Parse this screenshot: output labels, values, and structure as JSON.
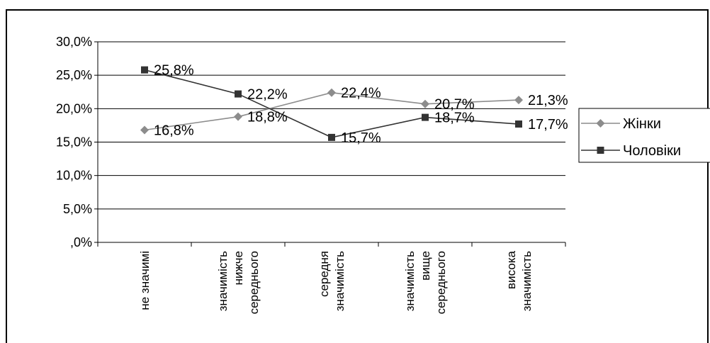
{
  "chart_data": {
    "type": "line",
    "categories": [
      [
        "не значимі"
      ],
      [
        "значимість",
        "нижче",
        "середнього"
      ],
      [
        "середня",
        "значимість"
      ],
      [
        "значимість",
        "вище",
        "середнього"
      ],
      [
        "висока",
        "значимість"
      ]
    ],
    "series": [
      {
        "name": "Жінки",
        "values": [
          16.8,
          18.8,
          22.4,
          20.7,
          21.3
        ],
        "labels": [
          "16,8%",
          "18,8%",
          "22,4%",
          "20,7%",
          "21,3%"
        ],
        "color": "#8c8c8c",
        "marker": "diamond"
      },
      {
        "name": "Чоловіки",
        "values": [
          25.8,
          22.2,
          15.7,
          18.7,
          17.7
        ],
        "labels": [
          "25,8%",
          "22,2%",
          "15,7%",
          "18,7%",
          "17,7%"
        ],
        "color": "#333333",
        "marker": "square"
      }
    ],
    "y_ticks": [
      ",0%",
      "5,0%",
      "10,0%",
      "15,0%",
      "20,0%",
      "25,0%",
      "30,0%"
    ],
    "ylim": [
      0,
      30
    ],
    "grid": true,
    "legend": "right"
  }
}
